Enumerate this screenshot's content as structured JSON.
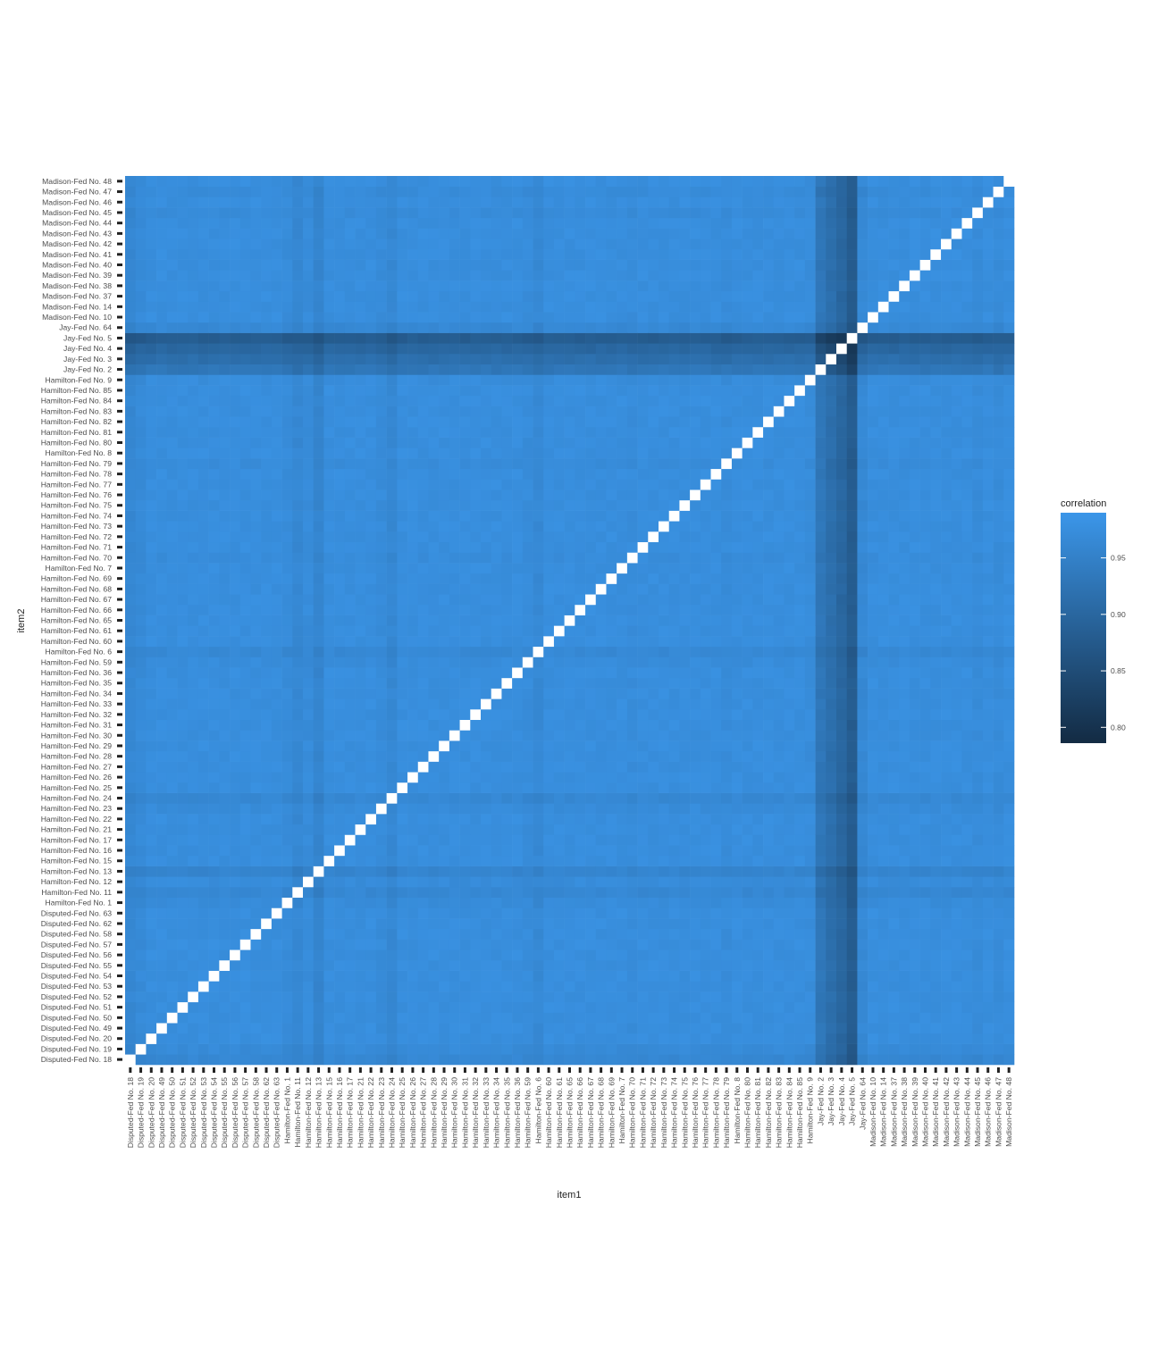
{
  "chart_data": {
    "type": "heatmap",
    "xlabel": "item1",
    "ylabel": "item2",
    "legend": {
      "title": "correlation",
      "placement": "right",
      "ticks": [
        0.8,
        0.85,
        0.9,
        0.95
      ],
      "tick_labels": [
        "0.80",
        "0.85",
        "0.90",
        "0.95"
      ],
      "range": [
        0.786,
        0.99
      ],
      "color_low": "#132B43",
      "color_high": "#3B96E9"
    },
    "diagonal": {
      "value": 1.0,
      "color": "#ffffff",
      "note": "diagonal cells are blank (self-correlation not shown)"
    },
    "grid": false,
    "items": [
      "Disputed-Fed No. 18",
      "Disputed-Fed No. 19",
      "Disputed-Fed No. 20",
      "Disputed-Fed No. 49",
      "Disputed-Fed No. 50",
      "Disputed-Fed No. 51",
      "Disputed-Fed No. 52",
      "Disputed-Fed No. 53",
      "Disputed-Fed No. 54",
      "Disputed-Fed No. 55",
      "Disputed-Fed No. 56",
      "Disputed-Fed No. 57",
      "Disputed-Fed No. 58",
      "Disputed-Fed No. 62",
      "Disputed-Fed No. 63",
      "Hamilton-Fed No. 1",
      "Hamilton-Fed No. 11",
      "Hamilton-Fed No. 12",
      "Hamilton-Fed No. 13",
      "Hamilton-Fed No. 15",
      "Hamilton-Fed No. 16",
      "Hamilton-Fed No. 17",
      "Hamilton-Fed No. 21",
      "Hamilton-Fed No. 22",
      "Hamilton-Fed No. 23",
      "Hamilton-Fed No. 24",
      "Hamilton-Fed No. 25",
      "Hamilton-Fed No. 26",
      "Hamilton-Fed No. 27",
      "Hamilton-Fed No. 28",
      "Hamilton-Fed No. 29",
      "Hamilton-Fed No. 30",
      "Hamilton-Fed No. 31",
      "Hamilton-Fed No. 32",
      "Hamilton-Fed No. 33",
      "Hamilton-Fed No. 34",
      "Hamilton-Fed No. 35",
      "Hamilton-Fed No. 36",
      "Hamilton-Fed No. 59",
      "Hamilton-Fed No. 6",
      "Hamilton-Fed No. 60",
      "Hamilton-Fed No. 61",
      "Hamilton-Fed No. 65",
      "Hamilton-Fed No. 66",
      "Hamilton-Fed No. 67",
      "Hamilton-Fed No. 68",
      "Hamilton-Fed No. 69",
      "Hamilton-Fed No. 7",
      "Hamilton-Fed No. 70",
      "Hamilton-Fed No. 71",
      "Hamilton-Fed No. 72",
      "Hamilton-Fed No. 73",
      "Hamilton-Fed No. 74",
      "Hamilton-Fed No. 75",
      "Hamilton-Fed No. 76",
      "Hamilton-Fed No. 77",
      "Hamilton-Fed No. 78",
      "Hamilton-Fed No. 79",
      "Hamilton-Fed No. 8",
      "Hamilton-Fed No. 80",
      "Hamilton-Fed No. 81",
      "Hamilton-Fed No. 82",
      "Hamilton-Fed No. 83",
      "Hamilton-Fed No. 84",
      "Hamilton-Fed No. 85",
      "Hamilton-Fed No. 9",
      "Jay-Fed No. 2",
      "Jay-Fed No. 3",
      "Jay-Fed No. 4",
      "Jay-Fed No. 5",
      "Jay-Fed No. 64",
      "Madison-Fed No. 10",
      "Madison-Fed No. 14",
      "Madison-Fed No. 37",
      "Madison-Fed No. 38",
      "Madison-Fed No. 39",
      "Madison-Fed No. 40",
      "Madison-Fed No. 41",
      "Madison-Fed No. 42",
      "Madison-Fed No. 43",
      "Madison-Fed No. 44",
      "Madison-Fed No. 45",
      "Madison-Fed No. 46",
      "Madison-Fed No. 47",
      "Madison-Fed No. 48"
    ],
    "base_correlation": 0.975,
    "item_offsets": {
      "Disputed-Fed No. 18": -0.012,
      "Disputed-Fed No. 19": -0.006,
      "Hamilton-Fed No. 1": -0.004,
      "Hamilton-Fed No. 11": -0.012,
      "Hamilton-Fed No. 12": -0.004,
      "Hamilton-Fed No. 13": -0.018,
      "Hamilton-Fed No. 23": -0.004,
      "Hamilton-Fed No. 24": -0.012,
      "Hamilton-Fed No. 6": -0.01,
      "Hamilton-Fed No. 59": -0.003,
      "Hamilton-Fed No. 9": -0.002,
      "Hamilton-Fed No. 70": -0.003,
      "Hamilton-Fed No. 79": -0.003,
      "Jay-Fed No. 2": -0.045,
      "Jay-Fed No. 3": -0.06,
      "Jay-Fed No. 4": -0.075,
      "Jay-Fed No. 5": -0.095,
      "Jay-Fed No. 64": -0.01,
      "Madison-Fed No. 45": -0.004,
      "Madison-Fed No. 47": -0.004
    }
  }
}
